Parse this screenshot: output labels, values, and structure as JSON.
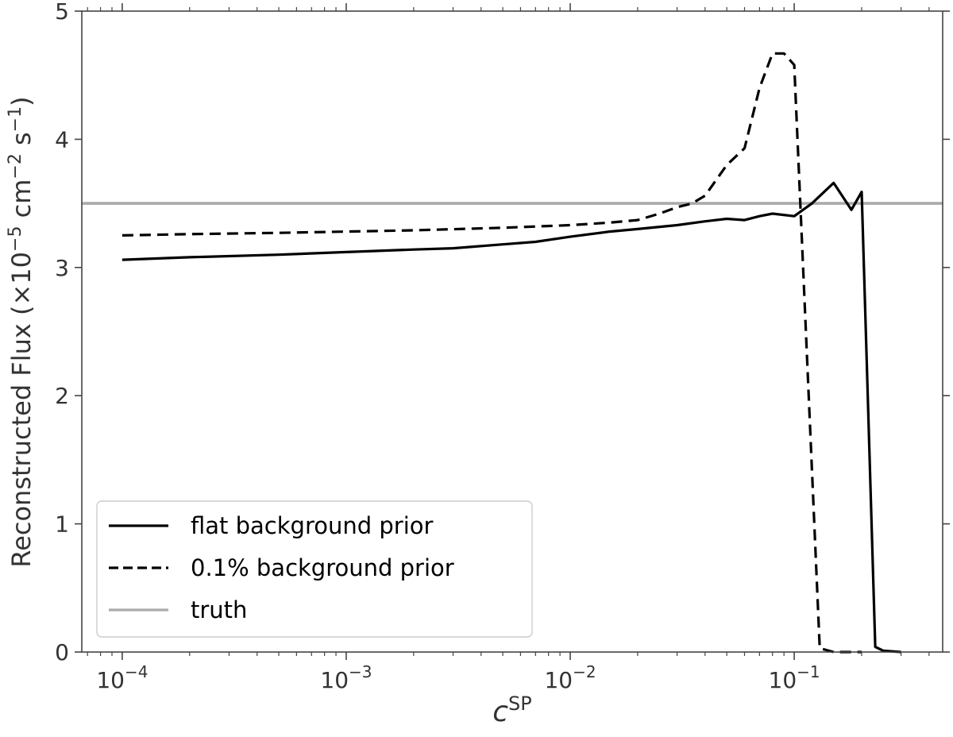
{
  "chart_data": {
    "type": "line",
    "xscale": "log",
    "xlim": [
      6.6e-05,
      0.46
    ],
    "ylim": [
      0,
      5
    ],
    "grid": false,
    "legend_position": "lower-left",
    "xlabel": "c",
    "xlabel_sup": "SP",
    "ylabel_main": "Reconstructed Flux (×10",
    "ylabel_exp1": "−5",
    "ylabel_mid": " cm",
    "ylabel_exp2": "−2",
    "ylabel_s": " s",
    "ylabel_exp3": "−1",
    "ylabel_end": ")",
    "x_ticks": [
      {
        "value": 0.0001,
        "base": "10",
        "exp": "−4"
      },
      {
        "value": 0.001,
        "base": "10",
        "exp": "−3"
      },
      {
        "value": 0.01,
        "base": "10",
        "exp": "−2"
      },
      {
        "value": 0.1,
        "base": "10",
        "exp": "−1"
      }
    ],
    "y_ticks": [
      0,
      1,
      2,
      3,
      4,
      5
    ],
    "series": [
      {
        "name": "flat background prior",
        "color": "#000000",
        "dash": "solid",
        "x": [
          0.0001,
          0.0002,
          0.0005,
          0.001,
          0.002,
          0.003,
          0.005,
          0.007,
          0.01,
          0.015,
          0.02,
          0.03,
          0.04,
          0.05,
          0.06,
          0.07,
          0.08,
          0.1,
          0.12,
          0.15,
          0.18,
          0.2,
          0.23,
          0.25,
          0.3
        ],
        "y": [
          3.06,
          3.08,
          3.1,
          3.12,
          3.14,
          3.15,
          3.18,
          3.2,
          3.24,
          3.28,
          3.3,
          3.33,
          3.36,
          3.38,
          3.37,
          3.4,
          3.42,
          3.4,
          3.5,
          3.66,
          3.45,
          3.59,
          0.04,
          0.01,
          0.0
        ]
      },
      {
        "name": "0.1% background prior",
        "color": "#000000",
        "dash": "dashed",
        "x": [
          0.0001,
          0.0002,
          0.0005,
          0.001,
          0.002,
          0.005,
          0.01,
          0.015,
          0.02,
          0.025,
          0.03,
          0.035,
          0.04,
          0.05,
          0.06,
          0.07,
          0.08,
          0.09,
          0.1,
          0.13,
          0.15,
          0.2
        ],
        "y": [
          3.25,
          3.26,
          3.27,
          3.28,
          3.29,
          3.31,
          3.33,
          3.35,
          3.37,
          3.42,
          3.47,
          3.5,
          3.56,
          3.8,
          3.93,
          4.4,
          4.67,
          4.67,
          4.58,
          0.03,
          0.0,
          0.0
        ]
      },
      {
        "name": "truth",
        "color": "#aaaaaa",
        "dash": "solid",
        "x": [
          6.6e-05,
          0.46
        ],
        "y": [
          3.5,
          3.5
        ]
      }
    ]
  }
}
